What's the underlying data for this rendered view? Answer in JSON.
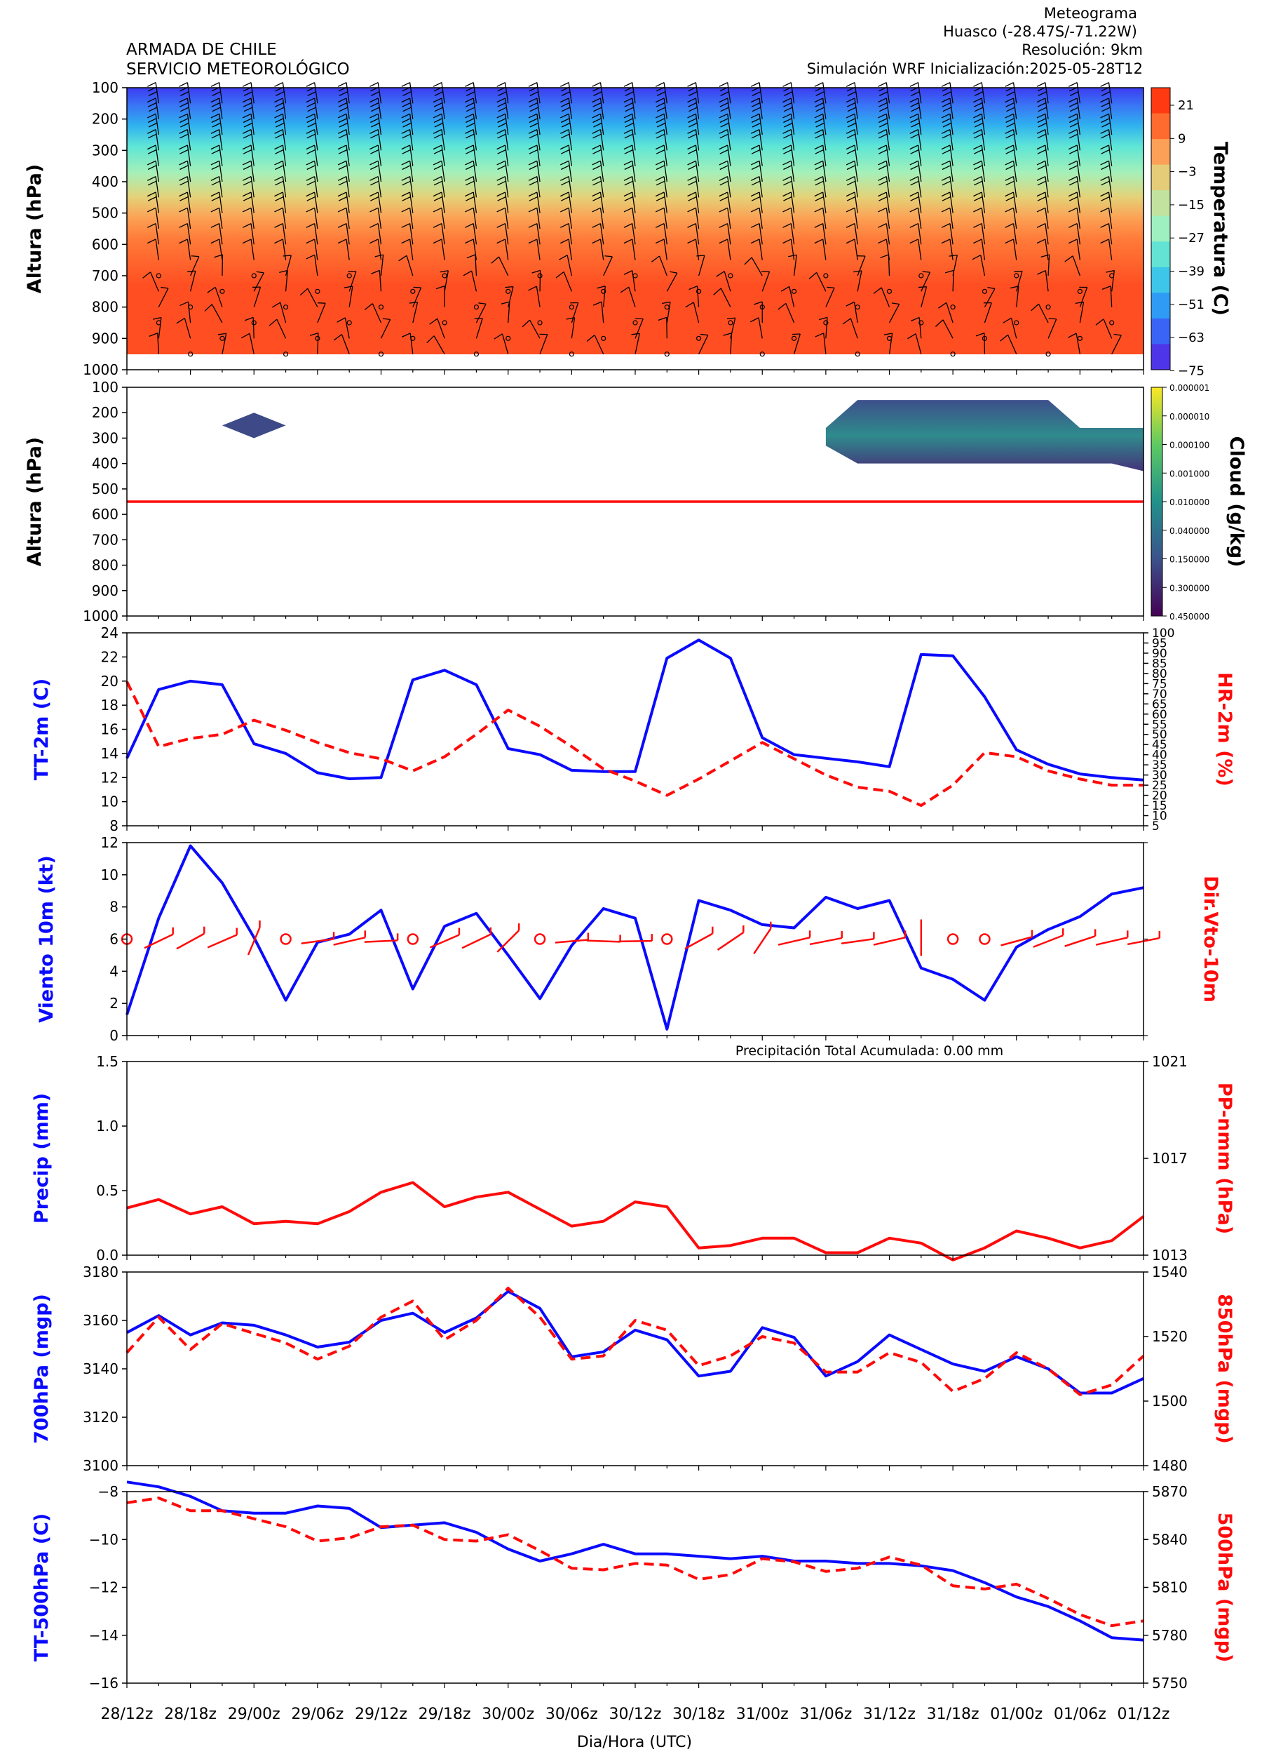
{
  "header": {
    "org_line1": "ARMADA DE CHILE",
    "org_line2": "SERVICIO METEOROLÓGICO",
    "right_line1": "Meteograma",
    "right_line2": "Huasco  (-28.47S/-71.22W)",
    "right_line3": "Resolución: 9km",
    "right_line4": "Simulación WRF   Inicialización:2025-05-28T12"
  },
  "x_axis": {
    "label": "Dia/Hora (UTC)",
    "tick_labels": [
      "28/12z",
      "28/18z",
      "29/00z",
      "29/06z",
      "29/12z",
      "29/18z",
      "30/00z",
      "30/06z",
      "30/12z",
      "30/18z",
      "31/00z",
      "31/06z",
      "31/12z",
      "31/18z",
      "01/00z",
      "01/06z",
      "01/12z"
    ],
    "steps_per_label": 2,
    "n_steps": 33
  },
  "colors": {
    "blue": "#0a0aff",
    "red": "#ff0a0a",
    "black": "#000000"
  },
  "chart_data": [
    {
      "type": "heatmap",
      "id": "temperature_profile",
      "ylabel": "Altura (hPa)",
      "y_ticks": [
        100,
        200,
        300,
        400,
        500,
        600,
        700,
        800,
        900,
        1000
      ],
      "ylim": [
        100,
        1000
      ],
      "colorbar_label": "Temperatura (C)",
      "colorbar_ticks": [
        21,
        9,
        -3,
        -15,
        -27,
        -39,
        -51,
        -63,
        -75
      ],
      "colorbar_colors": [
        "#ff3a12",
        "#ff6b2e",
        "#fca057",
        "#e4cc78",
        "#c2e3a0",
        "#9ef0c1",
        "#62e3d3",
        "#3ec6e8",
        "#2f9bf5",
        "#3964f5",
        "#4f35e8"
      ],
      "has_wind_barbs": true
    },
    {
      "type": "area",
      "id": "cloud_profile",
      "ylabel": "Altura (hPa)",
      "y_ticks": [
        100,
        200,
        300,
        400,
        500,
        600,
        700,
        800,
        900,
        1000
      ],
      "ylim": [
        100,
        1000
      ],
      "colorbar_label": "Cloud (g/kg)",
      "colorbar_ticks": [
        "0.450000",
        "0.300000",
        "0.150000",
        "0.040000",
        "0.010000",
        "0.001000",
        "0.000100",
        "0.000010",
        "0.000001"
      ],
      "reference_level_hPa": 550,
      "cloud_regions": [
        {
          "x_from": 3.0,
          "x_to": 5.0,
          "top_hPa": 200,
          "bottom_hPa": 300
        },
        {
          "x_from": 22.0,
          "x_to": 32.0,
          "top_hPa": 150,
          "bottom_hPa": 400
        }
      ]
    },
    {
      "type": "line",
      "id": "temp_rh_2m",
      "ylabel": "TT-2m (C)",
      "ylabel2": "HR-2m (%)",
      "ylim": [
        8,
        24
      ],
      "y_ticks": [
        8,
        10,
        12,
        14,
        16,
        18,
        20,
        22,
        24
      ],
      "ylim2": [
        5,
        100
      ],
      "y2_ticks": [
        5,
        10,
        15,
        20,
        25,
        30,
        35,
        40,
        45,
        50,
        55,
        60,
        65,
        70,
        75,
        80,
        85,
        90,
        95,
        100
      ],
      "series": [
        {
          "values": [
            13.6,
            19.3,
            20.0,
            19.7,
            14.8,
            14.0,
            12.4,
            11.9,
            12.0,
            20.1,
            20.9,
            19.7,
            14.4,
            13.9,
            12.6,
            12.5,
            12.5,
            21.9,
            23.4,
            21.9,
            15.3,
            13.9,
            13.6,
            13.3,
            12.9,
            22.2,
            22.1,
            18.7,
            14.3,
            13.1,
            12.3,
            12.0,
            11.8
          ]
        },
        {
          "values": [
            76,
            44,
            48,
            50,
            57,
            52,
            46,
            41,
            38,
            32,
            39,
            50,
            62,
            54,
            44,
            33,
            27,
            20,
            28,
            37,
            46,
            38,
            30,
            24,
            22,
            15,
            25,
            41,
            39,
            32,
            28,
            25,
            25
          ],
          "axis": "right",
          "style": "dashed"
        }
      ]
    },
    {
      "type": "line",
      "id": "wind_10m",
      "ylabel": "Viento 10m (kt)",
      "ylabel2": "Dir.Vto-10m",
      "ylim": [
        0,
        12
      ],
      "y_ticks": [
        0,
        2,
        4,
        6,
        8,
        10,
        12
      ],
      "series": [
        {
          "values": [
            1.3,
            7.3,
            11.8,
            9.5,
            6.1,
            2.2,
            5.8,
            6.3,
            7.8,
            2.9,
            6.8,
            7.6,
            5.0,
            2.3,
            5.6,
            7.9,
            7.3,
            0.4,
            8.4,
            7.8,
            6.9,
            6.7,
            8.6,
            7.9,
            8.4,
            4.2,
            3.5,
            2.2,
            5.5,
            6.6,
            7.4,
            8.8,
            9.2
          ]
        }
      ],
      "direction_barbs": true
    },
    {
      "type": "line",
      "id": "precip_pressure",
      "annotation": "Precipitación Total Acumulada: 0.00 mm",
      "ylabel": "Precip (mm)",
      "ylabel2": "PP-nmm (hPa)",
      "ylim": [
        0,
        1.5
      ],
      "y_ticks": [
        "0.0",
        "0.5",
        "1.0",
        "1.5"
      ],
      "ylim2": [
        1013,
        1021
      ],
      "y2_ticks": [
        1013,
        1017,
        1021
      ],
      "series": [
        {
          "values": [
            0,
            0,
            0,
            0,
            0,
            0,
            0,
            0,
            0,
            0,
            0,
            0,
            0,
            0,
            0,
            0,
            0,
            0,
            0,
            0,
            0,
            0,
            0,
            0,
            0,
            0,
            0,
            0,
            0,
            0,
            0,
            0,
            0
          ],
          "thin": true
        },
        {
          "values": [
            1014.95,
            1015.3,
            1014.7,
            1015.0,
            1014.3,
            1014.4,
            1014.3,
            1014.8,
            1015.6,
            1016.0,
            1015.0,
            1015.4,
            1015.6,
            1014.9,
            1014.2,
            1014.4,
            1015.2,
            1015.0,
            1013.3,
            1013.4,
            1013.7,
            1013.7,
            1013.1,
            1013.1,
            1013.7,
            1013.5,
            1012.8,
            1013.3,
            1014.0,
            1013.7,
            1013.3,
            1013.6,
            1014.6
          ],
          "axis": "right"
        }
      ]
    },
    {
      "type": "line",
      "id": "geopotential_700_850",
      "ylabel": "700hPa (mgp)",
      "ylabel2": "850hPa (mgp)",
      "ylim": [
        3100,
        3180
      ],
      "y_ticks": [
        3100,
        3120,
        3140,
        3160,
        3180
      ],
      "ylim2": [
        1480,
        1540
      ],
      "y2_ticks": [
        1480,
        1500,
        1520,
        1540
      ],
      "series": [
        {
          "values": [
            3155,
            3162,
            3154,
            3159,
            3158,
            3154,
            3149,
            3151,
            3160,
            3163,
            3155,
            3161,
            3172,
            3165,
            3145,
            3147,
            3156,
            3152,
            3137,
            3139,
            3157,
            3153,
            3137,
            3143,
            3154,
            3148,
            3142,
            3139,
            3145,
            3140,
            3130,
            3130,
            3136
          ]
        },
        {
          "values": [
            1515,
            1526,
            1516,
            1524,
            1521,
            1518,
            1513,
            1517,
            1526,
            1531,
            1519,
            1525,
            1535,
            1526,
            1513,
            1514,
            1525,
            1522,
            1511,
            1514,
            1520,
            1518,
            1509,
            1509,
            1515,
            1512,
            1503,
            1507,
            1515,
            1510,
            1502,
            1505,
            1514
          ],
          "axis": "right",
          "style": "dashed"
        }
      ]
    },
    {
      "type": "line",
      "id": "temp_geop_500",
      "ylabel": "TT-500hPa (C)",
      "ylabel2": "500hPa (mgp)",
      "ylim": [
        -16,
        -8
      ],
      "y_ticks": [
        -16,
        -14,
        -12,
        -10,
        -8
      ],
      "ylim2": [
        5750,
        5870
      ],
      "y2_ticks": [
        5750,
        5780,
        5810,
        5840,
        5870
      ],
      "series": [
        {
          "values": [
            -7.6,
            -7.8,
            -8.2,
            -8.8,
            -8.9,
            -8.9,
            -8.6,
            -8.7,
            -9.5,
            -9.4,
            -9.3,
            -9.7,
            -10.4,
            -10.9,
            -10.6,
            -10.2,
            -10.6,
            -10.6,
            -10.7,
            -10.8,
            -10.7,
            -10.9,
            -10.9,
            -11.0,
            -11.0,
            -11.1,
            -11.3,
            -11.8,
            -12.4,
            -12.8,
            -13.4,
            -14.1,
            -14.2
          ]
        },
        {
          "values": [
            5863,
            5866,
            5858,
            5858,
            5853,
            5848,
            5839,
            5841,
            5848,
            5849,
            5840,
            5839,
            5843,
            5833,
            5822,
            5821,
            5825,
            5824,
            5815,
            5818,
            5828,
            5826,
            5820,
            5822,
            5829,
            5824,
            5811,
            5809,
            5812,
            5803,
            5793,
            5786,
            5789
          ],
          "axis": "right",
          "style": "dashed"
        }
      ]
    }
  ]
}
